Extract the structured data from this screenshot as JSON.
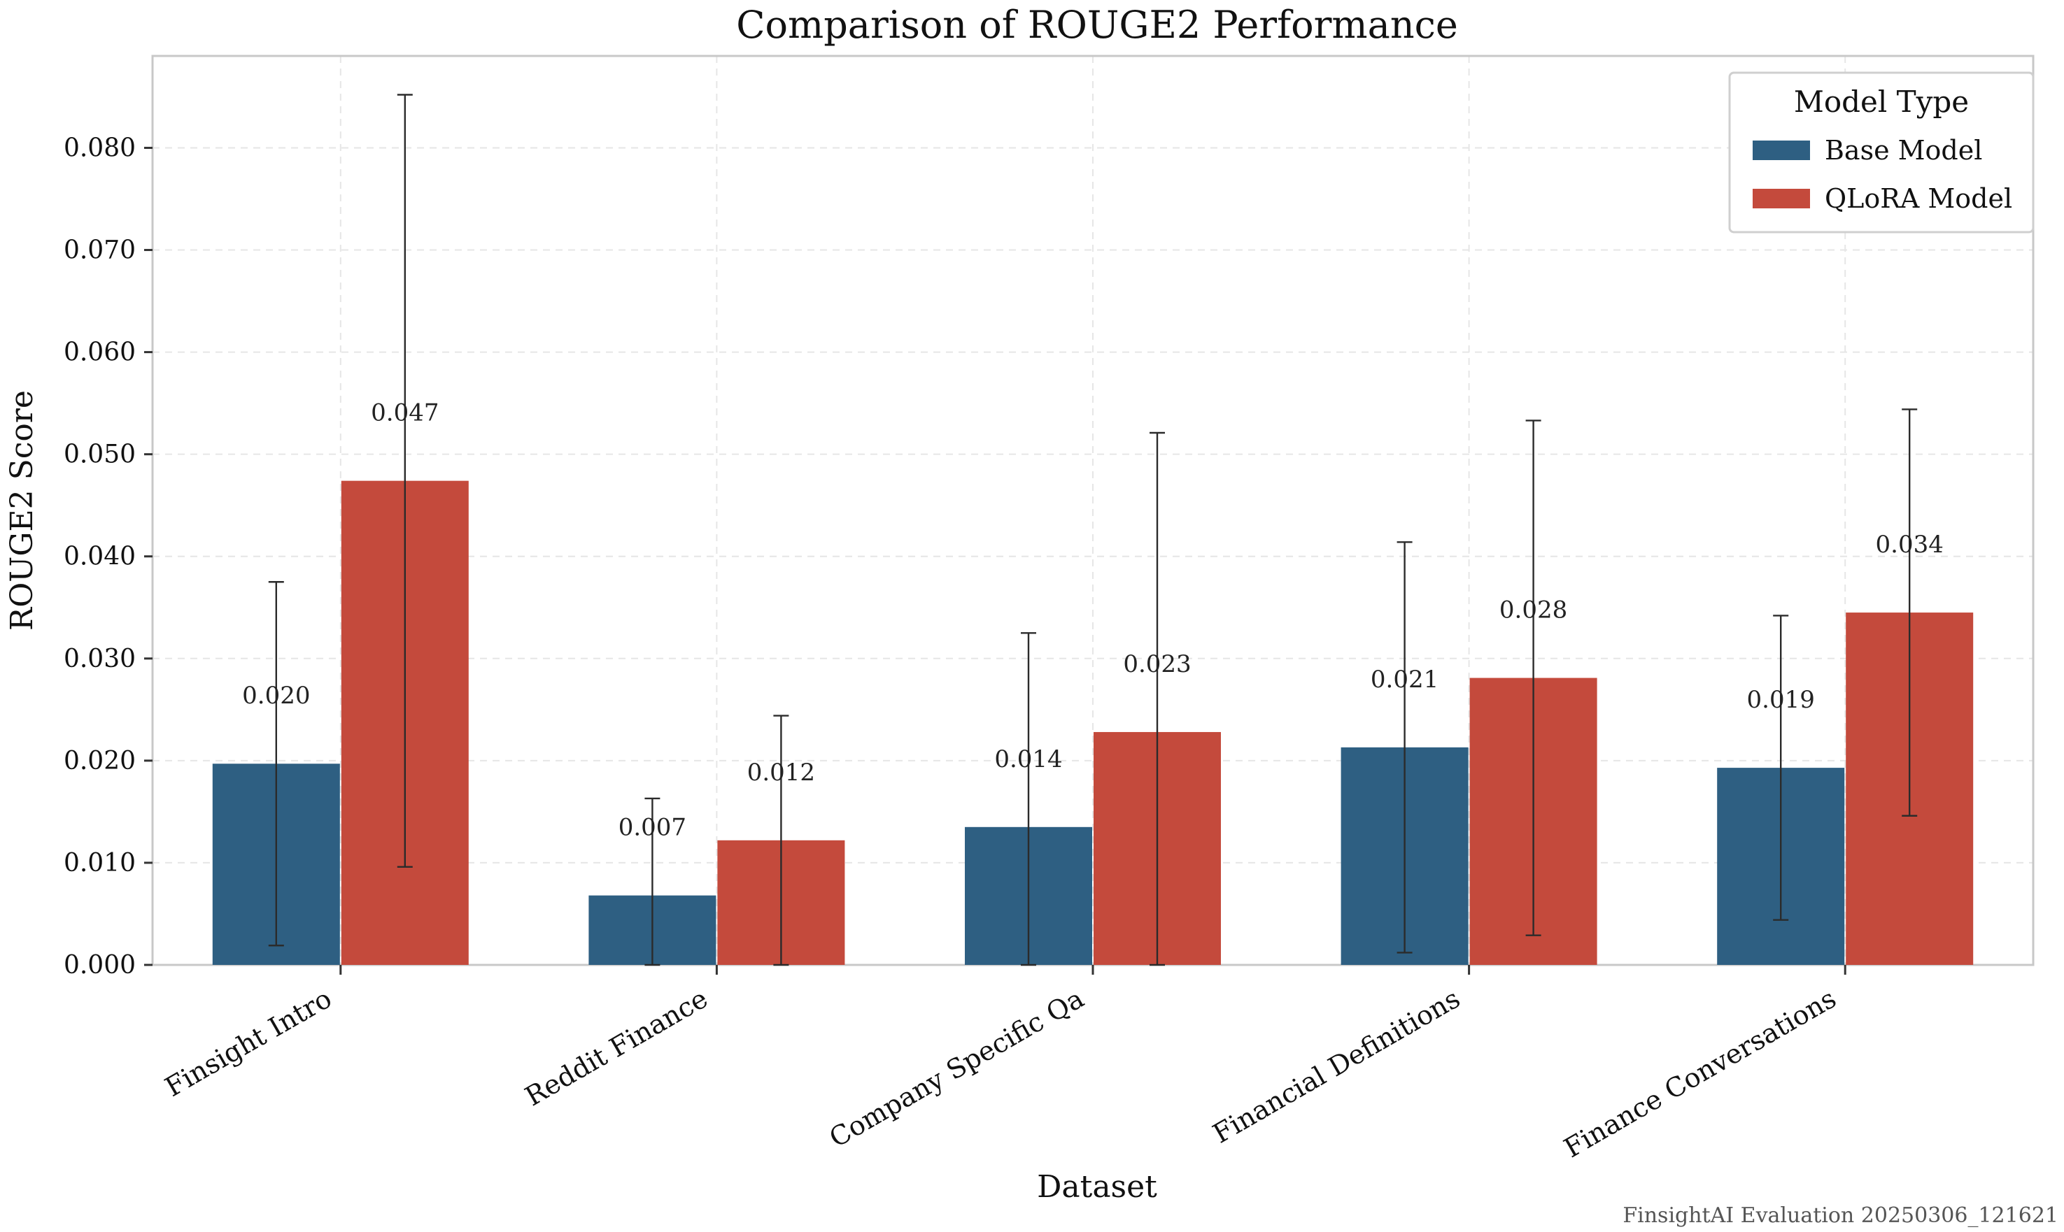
{
  "chart_data": {
    "type": "bar",
    "title": "Comparison of ROUGE2 Performance",
    "xlabel": "Dataset",
    "ylabel": "ROUGE2 Score",
    "ylim": [
      0,
      0.089
    ],
    "yticks": [
      "0.000",
      "0.010",
      "0.020",
      "0.030",
      "0.040",
      "0.050",
      "0.060",
      "0.070",
      "0.080"
    ],
    "grid": true,
    "legend_placement": "top-right",
    "legend_title": "Model Type",
    "categories": [
      "Finsight Intro",
      "Reddit Finance",
      "Company Specific Qa",
      "Financial Definitions",
      "Finance Conversations"
    ],
    "series": [
      {
        "name": "Base Model",
        "color": "#2e5f82",
        "values": [
          0.0197,
          0.0068,
          0.0135,
          0.0213,
          0.0193
        ],
        "error": [
          0.0178,
          0.0095,
          0.019,
          0.0201,
          0.0149
        ],
        "labels": [
          "0.020",
          "0.007",
          "0.014",
          "0.021",
          "0.019"
        ]
      },
      {
        "name": "QLoRA Model",
        "color": "#c44a3c",
        "values": [
          0.0474,
          0.0122,
          0.0228,
          0.0281,
          0.0345
        ],
        "error": [
          0.0378,
          0.0122,
          0.0293,
          0.0252,
          0.0199
        ],
        "labels": [
          "0.047",
          "0.012",
          "0.023",
          "0.028",
          "0.034"
        ]
      }
    ],
    "footer": "FinsightAI Evaluation 20250306_121621"
  }
}
